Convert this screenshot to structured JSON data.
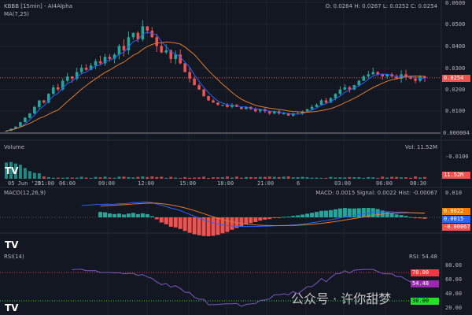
{
  "header": {
    "title": "KBBB [15min] - AI4Alpha",
    "ma_label": "MA(7,25)",
    "ohlc": "O: 0.0264 H: 0.0267 L: 0.0252 C: 0.0254"
  },
  "price_axis": [
    "0.0600",
    "0.0500",
    "0.0400",
    "0.0300",
    "0.0200",
    "0.0100",
    "0.000004"
  ],
  "price_tag": "0.0254",
  "volume": {
    "label": "Volume",
    "value": "Vol: 11.52M",
    "axis": "-0.0100",
    "tag": "11.52M"
  },
  "time_axis": [
    "05 Jun '25",
    "01:00",
    "06:00",
    "09:00",
    "12:00",
    "15:00",
    "18:00",
    "21:00",
    "6",
    "03:00",
    "06:00",
    "08:30"
  ],
  "macd": {
    "label": "MACD(12,26,9)",
    "values": "MACD: 0.0015 Signal: 0.0022 Hist: -0.00067",
    "axis": "0.010",
    "signal_tag": "0.0022",
    "macd_tag": "0.0015",
    "hist_tag": "-0.00067"
  },
  "rsi": {
    "label": "RSI(14)",
    "value": "RSI: 54.48",
    "axis": [
      "80.00",
      "60.00",
      "40.00",
      "20.00"
    ],
    "tag_70": "70.00",
    "tag_val": "54.48",
    "tag_30": "30.00"
  },
  "logo": "TV",
  "watermark": "公众号 · 许你甜梦",
  "colors": {
    "up": "#26a69a",
    "down": "#ef5350",
    "ma7": "#2962ff",
    "ma25": "#e07a2e",
    "rsi": "#7e57c2"
  },
  "chart_data": {
    "type": "candlestick",
    "ylim": [
      0,
      0.06
    ],
    "closes": [
      0.001,
      0.002,
      0.003,
      0.005,
      0.007,
      0.009,
      0.012,
      0.015,
      0.014,
      0.018,
      0.021,
      0.02,
      0.024,
      0.026,
      0.025,
      0.028,
      0.03,
      0.029,
      0.031,
      0.033,
      0.032,
      0.035,
      0.034,
      0.036,
      0.04,
      0.038,
      0.044,
      0.046,
      0.043,
      0.049,
      0.047,
      0.044,
      0.04,
      0.037,
      0.038,
      0.034,
      0.036,
      0.032,
      0.028,
      0.025,
      0.022,
      0.02,
      0.017,
      0.015,
      0.014,
      0.013,
      0.013,
      0.012,
      0.013,
      0.012,
      0.011,
      0.012,
      0.011,
      0.01,
      0.011,
      0.01,
      0.009,
      0.01,
      0.009,
      0.009,
      0.008,
      0.009,
      0.009,
      0.01,
      0.011,
      0.012,
      0.013,
      0.015,
      0.014,
      0.016,
      0.018,
      0.02,
      0.021,
      0.02,
      0.022,
      0.024,
      0.026,
      0.027,
      0.028,
      0.027,
      0.026,
      0.027,
      0.026,
      0.025,
      0.027,
      0.026,
      0.025,
      0.024,
      0.026,
      0.0254
    ],
    "rsi_ylim": [
      10,
      90
    ]
  }
}
